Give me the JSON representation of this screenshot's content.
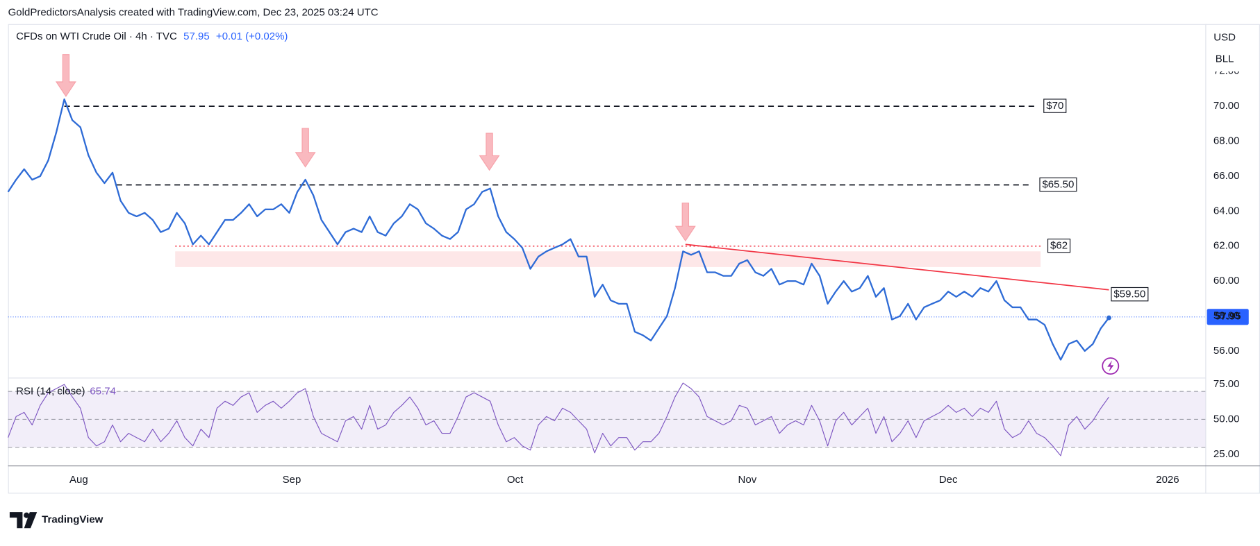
{
  "header": {
    "attribution": "GoldPredictorsAnalysis created with TradingView.com, Dec 23, 2025 03:24 UTC",
    "currency": "USD",
    "unit": "BLL",
    "brand": "TradingView"
  },
  "chart_data": [
    {
      "type": "line",
      "title": "CFDs on WTI Crude Oil · 4h · TVC",
      "last_price": 57.95,
      "change": "+0.01 (+0.02%)",
      "series": [
        {
          "color": "#2e6bd6",
          "values": [
            65.1,
            65.8,
            66.4,
            65.8,
            66.0,
            66.9,
            68.5,
            70.4,
            69.2,
            68.8,
            67.2,
            66.2,
            65.6,
            66.2,
            64.6,
            63.9,
            63.7,
            63.9,
            63.5,
            62.8,
            63.0,
            63.9,
            63.3,
            62.1,
            62.6,
            62.1,
            62.8,
            63.5,
            63.5,
            63.9,
            64.4,
            63.7,
            64.1,
            64.1,
            64.4,
            63.9,
            65.1,
            65.8,
            64.9,
            63.5,
            62.8,
            62.1,
            62.8,
            63.0,
            62.8,
            63.7,
            62.8,
            62.6,
            63.3,
            63.7,
            64.4,
            64.1,
            63.3,
            63.0,
            62.6,
            62.4,
            62.8,
            64.1,
            64.4,
            65.1,
            65.3,
            63.7,
            62.8,
            62.4,
            61.9,
            60.7,
            61.4,
            61.7,
            61.9,
            62.1,
            62.4,
            61.4,
            61.4,
            59.1,
            59.8,
            58.9,
            58.7,
            58.7,
            57.1,
            56.9,
            56.6,
            57.3,
            58.0,
            59.6,
            61.7,
            61.5,
            61.7,
            60.5,
            60.5,
            60.3,
            60.3,
            61.0,
            61.2,
            60.5,
            60.3,
            60.7,
            59.8,
            60.0,
            60.0,
            59.8,
            61.0,
            60.3,
            58.7,
            59.4,
            60.0,
            59.4,
            59.6,
            60.3,
            59.1,
            59.6,
            57.8,
            58.0,
            58.7,
            57.8,
            58.5,
            58.7,
            58.9,
            59.4,
            59.1,
            59.4,
            59.1,
            59.6,
            59.4,
            60.0,
            58.9,
            58.5,
            58.5,
            57.8,
            57.8,
            57.5,
            56.4,
            55.5,
            56.4,
            56.6,
            56.0,
            56.4,
            57.3,
            57.9
          ]
        }
      ],
      "xlim": [
        0,
        149
      ],
      "xticks": [
        {
          "value": 8.8,
          "label": "Aug"
        },
        {
          "value": 35.3,
          "label": "Sep"
        },
        {
          "value": 63.1,
          "label": "Oct"
        },
        {
          "value": 92,
          "label": "Nov"
        },
        {
          "value": 117,
          "label": "Dec"
        },
        {
          "value": 144.3,
          "label": "2026"
        }
      ],
      "ylim": [
        54.5,
        74.7
      ],
      "yticks": [
        {
          "value": 56,
          "label": "56.00"
        },
        {
          "value": 58,
          "label": "58.00"
        },
        {
          "value": 60,
          "label": "60.00"
        },
        {
          "value": 62,
          "label": "62.00"
        },
        {
          "value": 64,
          "label": "64.00"
        },
        {
          "value": 66,
          "label": "66.00"
        },
        {
          "value": 68,
          "label": "68.00"
        },
        {
          "value": 70,
          "label": "70.00"
        },
        {
          "value": 72,
          "label": "72.00"
        }
      ],
      "levels": [
        {
          "value": 70,
          "label": "$70"
        },
        {
          "value": 65.5,
          "label": "$65.50"
        },
        {
          "value": 62,
          "label": "$62"
        }
      ],
      "zone": [
        60.8,
        61.7
      ],
      "trendline": {
        "values": [
          62.1,
          59.5
        ],
        "label": "$59.50",
        "color": "#f23645"
      }
    },
    {
      "type": "line",
      "title": "RSI (14, close)",
      "last_value": 65.74,
      "series": [
        {
          "color": "#7e57c2",
          "values": [
            37,
            52,
            55,
            46,
            60,
            69,
            72,
            75,
            66,
            58,
            37,
            31,
            34,
            46,
            34,
            40,
            37,
            34,
            43,
            34,
            40,
            49,
            37,
            31,
            43,
            37,
            58,
            63,
            60,
            66,
            69,
            55,
            60,
            63,
            58,
            63,
            69,
            72,
            52,
            40,
            37,
            34,
            49,
            52,
            43,
            60,
            43,
            46,
            55,
            60,
            66,
            58,
            46,
            49,
            40,
            40,
            52,
            66,
            69,
            66,
            63,
            46,
            34,
            37,
            31,
            28,
            46,
            52,
            49,
            58,
            55,
            49,
            43,
            26,
            40,
            31,
            37,
            37,
            28,
            34,
            34,
            40,
            52,
            66,
            76,
            72,
            66,
            52,
            49,
            46,
            49,
            60,
            58,
            46,
            49,
            52,
            40,
            46,
            49,
            46,
            60,
            49,
            31,
            49,
            55,
            46,
            52,
            58,
            40,
            52,
            34,
            40,
            49,
            37,
            49,
            52,
            55,
            60,
            55,
            58,
            52,
            58,
            55,
            63,
            43,
            37,
            40,
            49,
            40,
            37,
            31,
            24,
            46,
            52,
            43,
            49,
            58,
            66
          ]
        }
      ],
      "xlim": [
        0,
        149
      ],
      "ylim": [
        17,
        79
      ],
      "yticks": [
        {
          "value": 25,
          "label": "25.00"
        },
        {
          "value": 50,
          "label": "50.00"
        },
        {
          "value": 75,
          "label": "75.00"
        }
      ],
      "levels": [
        30,
        50,
        70
      ]
    }
  ]
}
